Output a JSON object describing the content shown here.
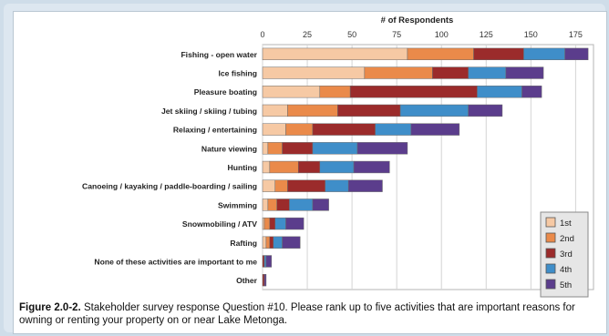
{
  "caption": {
    "figure_label": "Figure 2.0-2.",
    "text": "Stakeholder survey response Question #10.  Please rank up to five activities that are important reasons for owning or renting your property on or near Lake Metonga."
  },
  "chart_data": {
    "type": "bar",
    "orientation": "horizontal",
    "stacked": true,
    "title": "# of Respondents",
    "xlabel": "# of Respondents",
    "ylabel": "",
    "xlim": [
      0,
      185
    ],
    "xticks": [
      0,
      25,
      50,
      75,
      100,
      125,
      150,
      175
    ],
    "grid": true,
    "legend_position": "bottom-right",
    "categories": [
      "Fishing - open water",
      "Ice fishing",
      "Pleasure boating",
      "Jet skiing / skiing / tubing",
      "Relaxing / entertaining",
      "Nature viewing",
      "Hunting",
      "Canoeing / kayaking / paddle-boarding / sailing",
      "Swimming",
      "Snowmobiling / ATV",
      "Rafting",
      "None of these activities are important to me",
      "Other"
    ],
    "series": [
      {
        "name": "1st",
        "color": "#f6c9a4",
        "values": [
          81,
          57,
          32,
          14,
          13,
          3,
          4,
          7,
          3,
          1,
          2,
          0,
          0
        ]
      },
      {
        "name": "2nd",
        "color": "#ea8a4a",
        "values": [
          37,
          38,
          17,
          28,
          15,
          8,
          16,
          7,
          5,
          3,
          2,
          0,
          0
        ]
      },
      {
        "name": "3rd",
        "color": "#9b2b2b",
        "values": [
          28,
          20,
          71,
          35,
          35,
          17,
          12,
          21,
          7,
          3,
          2,
          1,
          1
        ]
      },
      {
        "name": "4th",
        "color": "#3f8ec9",
        "values": [
          23,
          21,
          25,
          38,
          20,
          25,
          19,
          13,
          13,
          6,
          5,
          1,
          0
        ]
      },
      {
        "name": "5th",
        "color": "#5b3d8c",
        "values": [
          13,
          21,
          11,
          19,
          27,
          28,
          20,
          19,
          9,
          10,
          10,
          3,
          1
        ]
      }
    ]
  }
}
